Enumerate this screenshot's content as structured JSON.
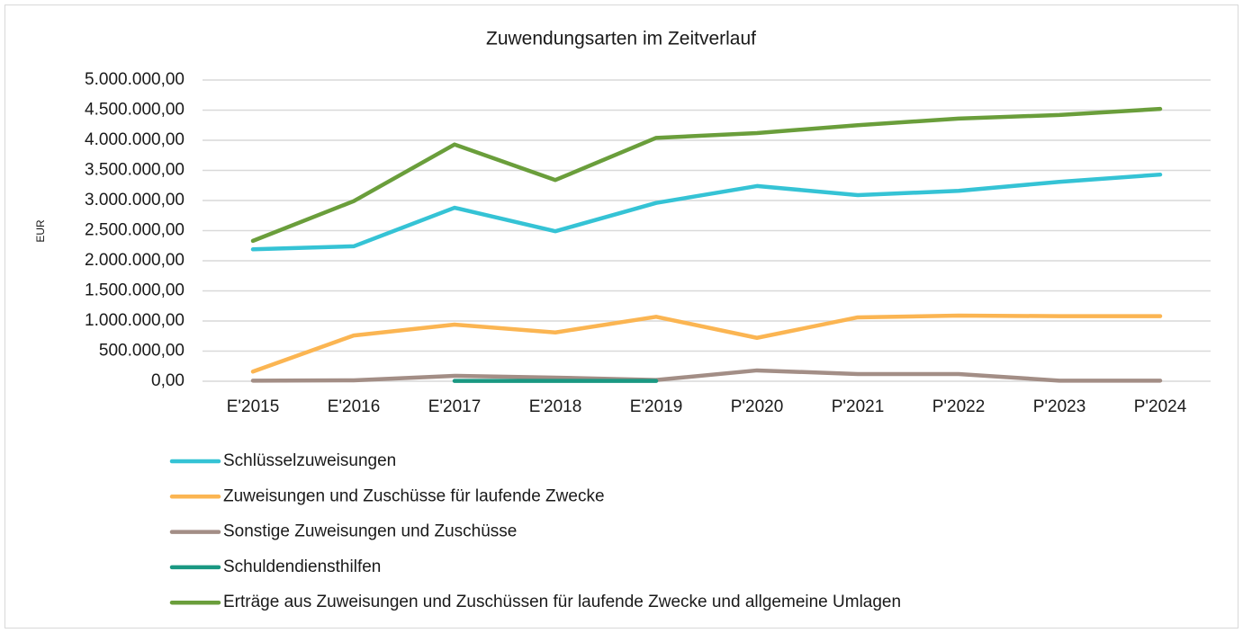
{
  "chart_data": {
    "type": "line",
    "title": "Zuwendungsarten im Zeitverlauf",
    "y_label": "EUR",
    "categories": [
      "E'2015",
      "E'2016",
      "E'2017",
      "E'2018",
      "E'2019",
      "P'2020",
      "P'2021",
      "P'2022",
      "P'2023",
      "P'2024"
    ],
    "series": [
      {
        "name": "Schlüsselzuweisungen",
        "color": "#35c3d5",
        "values": [
          2190000,
          2240000,
          2880000,
          2490000,
          2960000,
          3240000,
          3090000,
          3160000,
          3310000,
          3430000
        ]
      },
      {
        "name": "Zuweisungen und Zuschüsse für laufende Zwecke",
        "color": "#fbb552",
        "values": [
          160000,
          760000,
          940000,
          810000,
          1070000,
          720000,
          1060000,
          1090000,
          1080000,
          1080000
        ]
      },
      {
        "name": "Sonstige Zuweisungen und Zuschüsse",
        "color": "#a38e86",
        "values": [
          10000,
          15000,
          90000,
          60000,
          20000,
          180000,
          120000,
          120000,
          10000,
          10000
        ]
      },
      {
        "name": "Schuldendiensthilfen",
        "color": "#1a9882",
        "values": [
          null,
          null,
          5000,
          5000,
          5000,
          null,
          null,
          null,
          null,
          null
        ]
      },
      {
        "name": "Erträge aus Zuweisungen und Zuschüssen für laufende Zwecke und allgemeine Umlagen",
        "color": "#6a9e3b",
        "values": [
          2330000,
          2990000,
          3930000,
          3340000,
          4040000,
          4120000,
          4250000,
          4360000,
          4420000,
          4520000
        ]
      }
    ],
    "ylim": [
      0,
      5000000
    ],
    "yticks": [
      {
        "value": 0,
        "label": "0,00"
      },
      {
        "value": 500000,
        "label": "500.000,00"
      },
      {
        "value": 1000000,
        "label": "1.000.000,00"
      },
      {
        "value": 1500000,
        "label": "1.500.000,00"
      },
      {
        "value": 2000000,
        "label": "2.000.000,00"
      },
      {
        "value": 2500000,
        "label": "2.500.000,00"
      },
      {
        "value": 3000000,
        "label": "3.000.000,00"
      },
      {
        "value": 3500000,
        "label": "3.500.000,00"
      },
      {
        "value": 4000000,
        "label": "4.000.000,00"
      },
      {
        "value": 4500000,
        "label": "4.500.000,00"
      },
      {
        "value": 5000000,
        "label": "5.000.000,00"
      }
    ],
    "grid": true,
    "legend": "bottom"
  }
}
